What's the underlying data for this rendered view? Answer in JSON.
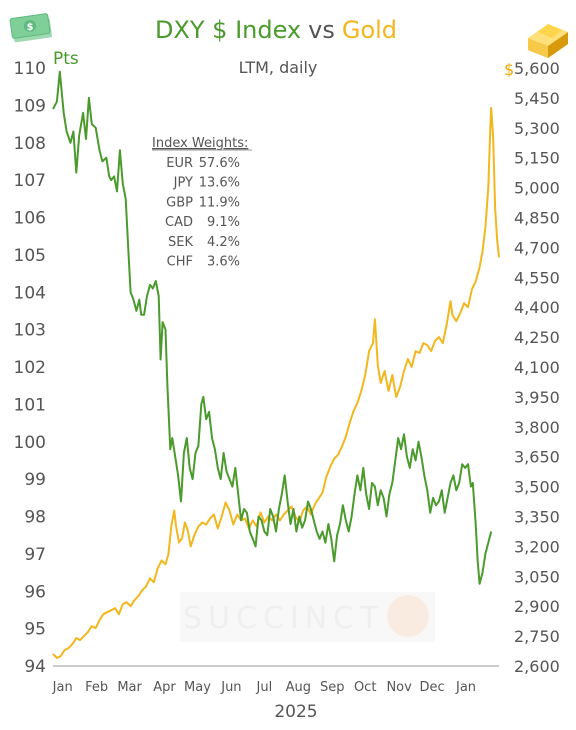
{
  "chart_data": {
    "type": "line",
    "title": {
      "part1": "DXY $ Index",
      "part2": "vs",
      "part3": "Gold"
    },
    "subtitle": "LTM, daily",
    "xlabel": "2025",
    "x_ticks": [
      "Jan",
      "Feb",
      "Mar",
      "Apr",
      "May",
      "Jun",
      "Jul",
      "Aug",
      "Sep",
      "Oct",
      "Nov",
      "Dec",
      "Jan"
    ],
    "left_axis": {
      "unit": "Pts",
      "ylim": [
        94,
        110
      ],
      "ticks": [
        "94",
        "95",
        "96",
        "97",
        "98",
        "99",
        "100",
        "101",
        "102",
        "103",
        "104",
        "105",
        "106",
        "107",
        "108",
        "109",
        "110"
      ]
    },
    "right_axis": {
      "unit": "$",
      "ylim": [
        2600,
        5600
      ],
      "ticks": [
        "2,600",
        "2,750",
        "2,900",
        "3,050",
        "3,200",
        "3,350",
        "3,500",
        "3,650",
        "3,800",
        "3,950",
        "4,100",
        "4,250",
        "4,400",
        "4,550",
        "4,700",
        "4,850",
        "5,000",
        "5,150",
        "5,300",
        "5,450",
        "5,600"
      ]
    },
    "weights": {
      "heading": "Index Weights:",
      "rows": [
        {
          "ccy": "EUR",
          "pct": "57.6%"
        },
        {
          "ccy": "JPY",
          "pct": "13.6%"
        },
        {
          "ccy": "GBP",
          "pct": "11.9%"
        },
        {
          "ccy": "CAD",
          "pct": "9.1%"
        },
        {
          "ccy": "SEK",
          "pct": "4.2%"
        },
        {
          "ccy": "CHF",
          "pct": "3.6%"
        }
      ]
    },
    "series": [
      {
        "color": "#4a9a2c",
        "axis": "left",
        "points": [
          [
            0.0,
            108.9
          ],
          [
            0.2,
            109.1
          ],
          [
            0.35,
            109.9
          ],
          [
            0.55,
            108.8
          ],
          [
            0.7,
            108.3
          ],
          [
            0.9,
            108.0
          ],
          [
            1.05,
            108.3
          ],
          [
            1.2,
            107.2
          ],
          [
            1.35,
            108.2
          ],
          [
            1.55,
            108.8
          ],
          [
            1.7,
            108.1
          ],
          [
            1.85,
            109.2
          ],
          [
            2.0,
            108.5
          ],
          [
            2.2,
            108.4
          ],
          [
            2.4,
            107.8
          ],
          [
            2.55,
            107.5
          ],
          [
            2.75,
            107.6
          ],
          [
            2.9,
            107.1
          ],
          [
            3.0,
            107.0
          ],
          [
            3.15,
            107.1
          ],
          [
            3.3,
            106.7
          ],
          [
            3.45,
            107.8
          ],
          [
            3.6,
            106.9
          ],
          [
            3.75,
            106.5
          ],
          [
            3.9,
            105.0
          ],
          [
            4.0,
            104.0
          ],
          [
            4.15,
            103.8
          ],
          [
            4.3,
            103.5
          ],
          [
            4.45,
            103.8
          ],
          [
            4.55,
            103.4
          ],
          [
            4.7,
            103.4
          ],
          [
            4.85,
            103.9
          ],
          [
            5.0,
            104.2
          ],
          [
            5.15,
            104.1
          ],
          [
            5.3,
            104.3
          ],
          [
            5.45,
            103.9
          ],
          [
            5.55,
            102.2
          ],
          [
            5.65,
            103.2
          ],
          [
            5.8,
            103.0
          ],
          [
            5.9,
            101.5
          ],
          [
            6.05,
            99.8
          ],
          [
            6.15,
            100.1
          ],
          [
            6.3,
            99.6
          ],
          [
            6.45,
            99.1
          ],
          [
            6.6,
            98.4
          ],
          [
            6.75,
            99.7
          ],
          [
            6.9,
            100.1
          ],
          [
            7.05,
            99.3
          ],
          [
            7.2,
            99.0
          ],
          [
            7.35,
            99.7
          ],
          [
            7.5,
            99.9
          ],
          [
            7.65,
            101.0
          ],
          [
            7.75,
            101.2
          ],
          [
            7.9,
            100.6
          ],
          [
            8.05,
            100.8
          ],
          [
            8.2,
            100.1
          ],
          [
            8.35,
            99.8
          ],
          [
            8.5,
            99.3
          ],
          [
            8.65,
            99.0
          ],
          [
            8.8,
            99.7
          ],
          [
            8.95,
            99.2
          ],
          [
            9.1,
            99.0
          ],
          [
            9.25,
            98.8
          ],
          [
            9.4,
            99.3
          ],
          [
            9.55,
            98.6
          ],
          [
            9.7,
            97.9
          ],
          [
            9.85,
            98.2
          ],
          [
            10.0,
            98.1
          ],
          [
            10.15,
            97.6
          ],
          [
            10.3,
            97.4
          ],
          [
            10.45,
            97.2
          ],
          [
            10.6,
            98.0
          ],
          [
            10.75,
            97.9
          ],
          [
            10.9,
            97.6
          ],
          [
            11.05,
            97.5
          ],
          [
            11.2,
            98.2
          ],
          [
            11.35,
            98.0
          ],
          [
            11.5,
            97.6
          ],
          [
            11.65,
            98.2
          ],
          [
            11.8,
            98.6
          ],
          [
            11.95,
            99.1
          ],
          [
            12.1,
            98.4
          ],
          [
            12.25,
            97.8
          ],
          [
            12.4,
            98.2
          ],
          [
            12.55,
            97.6
          ],
          [
            12.7,
            98.0
          ],
          [
            12.85,
            97.7
          ],
          [
            13.0,
            97.9
          ],
          [
            13.15,
            98.4
          ],
          [
            13.3,
            98.2
          ],
          [
            13.45,
            97.9
          ],
          [
            13.6,
            97.6
          ],
          [
            13.75,
            97.4
          ],
          [
            13.9,
            97.6
          ],
          [
            14.05,
            97.3
          ],
          [
            14.2,
            97.8
          ],
          [
            14.35,
            97.4
          ],
          [
            14.5,
            96.8
          ],
          [
            14.65,
            97.5
          ],
          [
            14.8,
            97.8
          ],
          [
            14.95,
            98.3
          ],
          [
            15.1,
            97.9
          ],
          [
            15.25,
            97.6
          ],
          [
            15.4,
            98.0
          ],
          [
            15.55,
            98.6
          ],
          [
            15.7,
            99.1
          ],
          [
            15.85,
            98.7
          ],
          [
            16.0,
            99.3
          ],
          [
            16.15,
            98.6
          ],
          [
            16.3,
            98.2
          ],
          [
            16.45,
            98.9
          ],
          [
            16.6,
            98.8
          ],
          [
            16.75,
            98.3
          ],
          [
            16.9,
            98.7
          ],
          [
            17.05,
            98.5
          ],
          [
            17.2,
            98.0
          ],
          [
            17.35,
            98.6
          ],
          [
            17.5,
            98.9
          ],
          [
            17.65,
            99.5
          ],
          [
            17.8,
            100.1
          ],
          [
            17.95,
            99.8
          ],
          [
            18.1,
            100.2
          ],
          [
            18.25,
            99.6
          ],
          [
            18.4,
            99.3
          ],
          [
            18.55,
            99.8
          ],
          [
            18.7,
            99.5
          ],
          [
            18.85,
            100.0
          ],
          [
            19.0,
            99.6
          ],
          [
            19.15,
            99.1
          ],
          [
            19.3,
            98.7
          ],
          [
            19.45,
            98.1
          ],
          [
            19.6,
            98.5
          ],
          [
            19.75,
            98.3
          ],
          [
            19.9,
            98.4
          ],
          [
            20.05,
            98.7
          ],
          [
            20.2,
            98.1
          ],
          [
            20.35,
            98.5
          ],
          [
            20.5,
            98.9
          ],
          [
            20.65,
            99.1
          ],
          [
            20.8,
            98.7
          ],
          [
            20.95,
            98.9
          ],
          [
            21.1,
            99.4
          ],
          [
            21.25,
            99.3
          ],
          [
            21.4,
            99.4
          ],
          [
            21.55,
            98.8
          ],
          [
            21.65,
            98.9
          ],
          [
            21.8,
            97.8
          ],
          [
            21.9,
            96.8
          ],
          [
            22.0,
            96.2
          ],
          [
            22.15,
            96.5
          ],
          [
            22.3,
            97.0
          ],
          [
            22.45,
            97.3
          ],
          [
            22.6,
            97.6
          ]
        ]
      },
      {
        "color": "#f2b71f",
        "axis": "right",
        "points": [
          [
            0.0,
            2660
          ],
          [
            0.2,
            2640
          ],
          [
            0.4,
            2650
          ],
          [
            0.6,
            2680
          ],
          [
            0.8,
            2690
          ],
          [
            1.0,
            2710
          ],
          [
            1.2,
            2740
          ],
          [
            1.4,
            2730
          ],
          [
            1.6,
            2750
          ],
          [
            1.8,
            2770
          ],
          [
            2.0,
            2800
          ],
          [
            2.2,
            2790
          ],
          [
            2.4,
            2830
          ],
          [
            2.6,
            2860
          ],
          [
            2.8,
            2870
          ],
          [
            3.0,
            2880
          ],
          [
            3.2,
            2890
          ],
          [
            3.4,
            2860
          ],
          [
            3.6,
            2910
          ],
          [
            3.8,
            2920
          ],
          [
            4.0,
            2900
          ],
          [
            4.2,
            2930
          ],
          [
            4.4,
            2950
          ],
          [
            4.6,
            2980
          ],
          [
            4.8,
            3000
          ],
          [
            5.0,
            3040
          ],
          [
            5.2,
            3020
          ],
          [
            5.4,
            3090
          ],
          [
            5.6,
            3130
          ],
          [
            5.8,
            3110
          ],
          [
            5.95,
            3160
          ],
          [
            6.1,
            3300
          ],
          [
            6.25,
            3380
          ],
          [
            6.35,
            3300
          ],
          [
            6.5,
            3220
          ],
          [
            6.65,
            3240
          ],
          [
            6.8,
            3320
          ],
          [
            6.95,
            3280
          ],
          [
            7.1,
            3200
          ],
          [
            7.3,
            3260
          ],
          [
            7.5,
            3300
          ],
          [
            7.7,
            3320
          ],
          [
            7.9,
            3310
          ],
          [
            8.1,
            3340
          ],
          [
            8.3,
            3360
          ],
          [
            8.5,
            3290
          ],
          [
            8.7,
            3350
          ],
          [
            8.9,
            3420
          ],
          [
            9.1,
            3380
          ],
          [
            9.3,
            3310
          ],
          [
            9.5,
            3360
          ],
          [
            9.7,
            3330
          ],
          [
            9.9,
            3340
          ],
          [
            10.1,
            3290
          ],
          [
            10.3,
            3330
          ],
          [
            10.5,
            3300
          ],
          [
            10.7,
            3370
          ],
          [
            10.9,
            3320
          ],
          [
            11.1,
            3350
          ],
          [
            11.3,
            3330
          ],
          [
            11.5,
            3360
          ],
          [
            11.7,
            3330
          ],
          [
            11.9,
            3360
          ],
          [
            12.1,
            3380
          ],
          [
            12.3,
            3400
          ],
          [
            12.5,
            3350
          ],
          [
            12.7,
            3320
          ],
          [
            12.9,
            3380
          ],
          [
            13.1,
            3400
          ],
          [
            13.3,
            3360
          ],
          [
            13.5,
            3410
          ],
          [
            13.7,
            3440
          ],
          [
            13.9,
            3470
          ],
          [
            14.1,
            3550
          ],
          [
            14.3,
            3600
          ],
          [
            14.5,
            3640
          ],
          [
            14.7,
            3660
          ],
          [
            14.9,
            3700
          ],
          [
            15.1,
            3750
          ],
          [
            15.3,
            3820
          ],
          [
            15.5,
            3880
          ],
          [
            15.7,
            3920
          ],
          [
            15.9,
            3980
          ],
          [
            16.1,
            4060
          ],
          [
            16.3,
            4180
          ],
          [
            16.5,
            4220
          ],
          [
            16.6,
            4340
          ],
          [
            16.75,
            4110
          ],
          [
            16.9,
            4020
          ],
          [
            17.1,
            4080
          ],
          [
            17.3,
            3980
          ],
          [
            17.5,
            4060
          ],
          [
            17.7,
            3950
          ],
          [
            17.9,
            4000
          ],
          [
            18.1,
            4080
          ],
          [
            18.3,
            4140
          ],
          [
            18.5,
            4100
          ],
          [
            18.7,
            4180
          ],
          [
            18.9,
            4170
          ],
          [
            19.1,
            4220
          ],
          [
            19.3,
            4210
          ],
          [
            19.5,
            4180
          ],
          [
            19.7,
            4230
          ],
          [
            19.9,
            4250
          ],
          [
            20.1,
            4220
          ],
          [
            20.3,
            4310
          ],
          [
            20.5,
            4430
          ],
          [
            20.6,
            4360
          ],
          [
            20.8,
            4330
          ],
          [
            21.0,
            4370
          ],
          [
            21.2,
            4420
          ],
          [
            21.4,
            4400
          ],
          [
            21.6,
            4490
          ],
          [
            21.8,
            4530
          ],
          [
            22.0,
            4600
          ],
          [
            22.15,
            4680
          ],
          [
            22.3,
            4800
          ],
          [
            22.45,
            5000
          ],
          [
            22.55,
            5300
          ],
          [
            22.6,
            5400
          ],
          [
            22.7,
            5250
          ],
          [
            22.8,
            4900
          ],
          [
            22.9,
            4740
          ],
          [
            23.0,
            4650
          ]
        ]
      }
    ],
    "watermark": "SUCCINCT"
  }
}
